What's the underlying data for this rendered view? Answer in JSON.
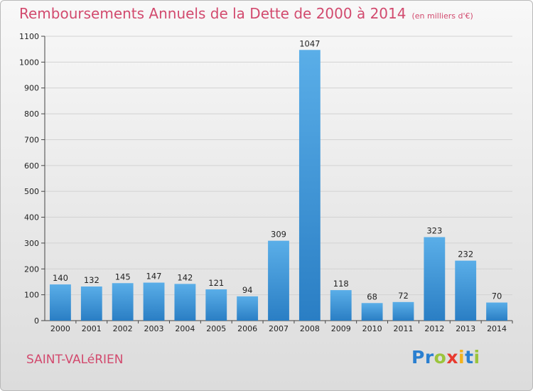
{
  "chart_data": {
    "type": "bar",
    "title": "Remboursements Annuels de la Dette de 2000 à 2014",
    "unit_note": "(en milliers d'€)",
    "categories": [
      "2000",
      "2001",
      "2002",
      "2003",
      "2004",
      "2005",
      "2006",
      "2007",
      "2008",
      "2009",
      "2010",
      "2011",
      "2012",
      "2013",
      "2014"
    ],
    "values": [
      140,
      132,
      145,
      147,
      142,
      121,
      94,
      309,
      1047,
      118,
      68,
      72,
      323,
      232,
      70
    ],
    "ylim": [
      0,
      1100
    ],
    "yticks": [
      0,
      100,
      200,
      300,
      400,
      500,
      600,
      700,
      800,
      900,
      1000,
      1100
    ],
    "grid": true,
    "bar_color": "#3f93d6"
  },
  "footer": {
    "commune": "SAINT-VALéRIEN",
    "logo_letters": [
      {
        "ch": "P",
        "color": "#2a7fd0"
      },
      {
        "ch": "r",
        "color": "#2a7fd0"
      },
      {
        "ch": "o",
        "color": "#9bc43c"
      },
      {
        "ch": "x",
        "color": "#e83a2f"
      },
      {
        "ch": "i",
        "color": "#f2b21c"
      },
      {
        "ch": "t",
        "color": "#2a7fd0"
      },
      {
        "ch": "i",
        "color": "#9bc43c"
      }
    ]
  }
}
